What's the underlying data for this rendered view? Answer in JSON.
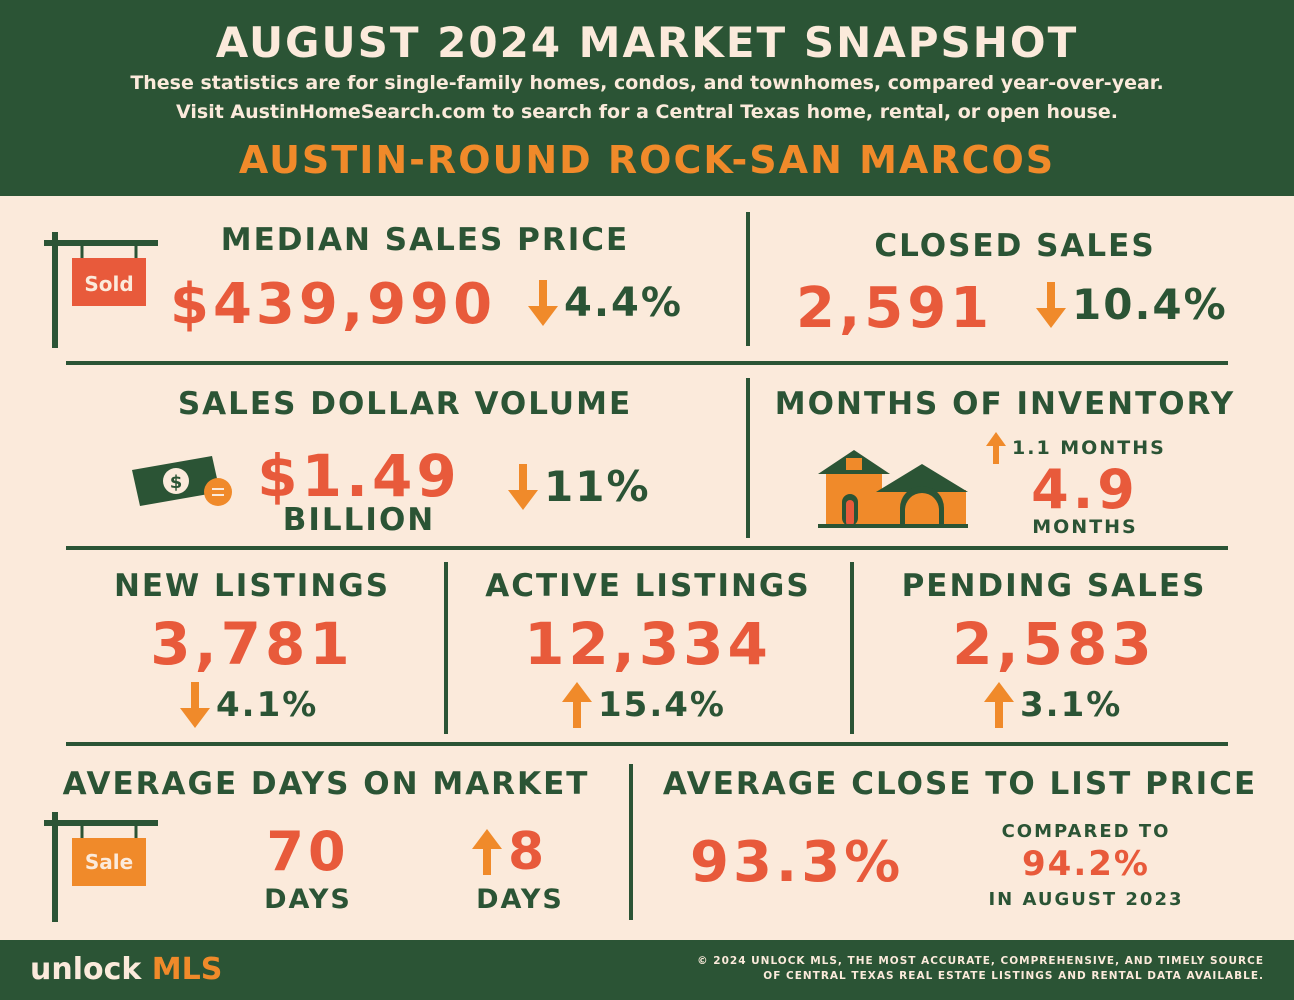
{
  "header": {
    "title": "AUGUST 2024 MARKET SNAPSHOT",
    "subtitle_line1": "These statistics are for single-family homes, condos, and townhomes, compared year-over-year.",
    "subtitle_line2": "Visit AustinHomeSearch.com to search for a Central Texas home, rental, or open house.",
    "region": "AUSTIN-ROUND ROCK-SAN MARCOS"
  },
  "median_sales_price": {
    "label": "MEDIAN SALES PRICE",
    "value": "$439,990",
    "change": "4.4%",
    "direction": "down",
    "sign_text": "Sold"
  },
  "closed_sales": {
    "label": "CLOSED SALES",
    "value": "2,591",
    "change": "10.4%",
    "direction": "down"
  },
  "sales_dollar_volume": {
    "label": "SALES DOLLAR VOLUME",
    "value": "$1.49",
    "unit": "BILLION",
    "change": "11%",
    "direction": "down",
    "icon": "money-icon"
  },
  "months_of_inventory": {
    "label": "MONTHS OF INVENTORY",
    "change": "1.1 MONTHS",
    "direction": "up",
    "value": "4.9",
    "unit": "MONTHS",
    "icon": "house-icon"
  },
  "new_listings": {
    "label": "NEW LISTINGS",
    "value": "3,781",
    "change": "4.1%",
    "direction": "down"
  },
  "active_listings": {
    "label": "ACTIVE LISTINGS",
    "value": "12,334",
    "change": "15.4%",
    "direction": "up"
  },
  "pending_sales": {
    "label": "PENDING SALES",
    "value": "2,583",
    "change": "3.1%",
    "direction": "up"
  },
  "avg_days_on_market": {
    "label": "AVERAGE DAYS ON MARKET",
    "value": "70",
    "unit": "DAYS",
    "change": "8",
    "change_unit": "DAYS",
    "direction": "up",
    "sign_text": "Sale"
  },
  "avg_close_to_list": {
    "label": "AVERAGE CLOSE TO LIST PRICE",
    "value": "93.3%",
    "compared_label": "COMPARED TO",
    "compared_value": "94.2%",
    "compared_period": "IN AUGUST 2023"
  },
  "footer": {
    "logo_part1": "unlock ",
    "logo_part2": "MLS",
    "copyright_line1": "© 2024 UNLOCK MLS, THE MOST ACCURATE, COMPREHENSIVE, AND TIMELY SOURCE",
    "copyright_line2": "OF CENTRAL TEXAS REAL ESTATE LISTINGS AND RENTAL DATA AVAILABLE."
  },
  "colors": {
    "green": "#2b5435",
    "orange": "#e85a3b",
    "light_orange": "#f08a2a",
    "cream": "#fbeadb"
  }
}
